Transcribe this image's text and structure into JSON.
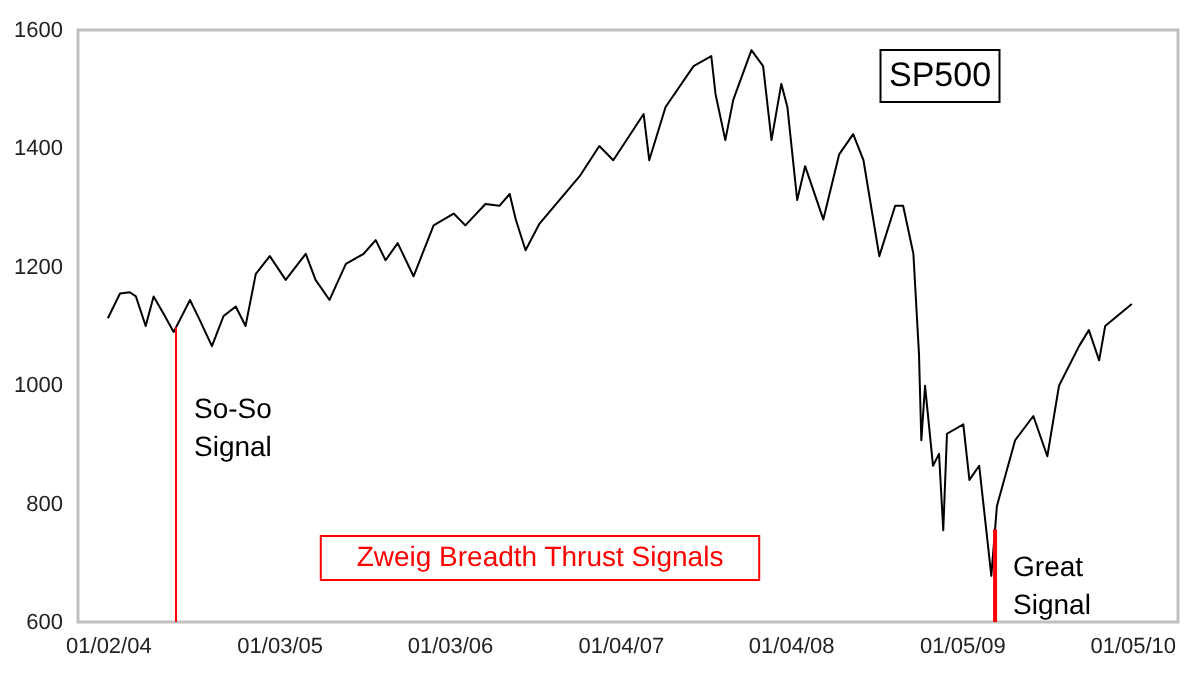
{
  "chart_data": {
    "type": "line",
    "title": "SP500",
    "annotations": [
      "Zweig Breadth Thrust Signals"
    ],
    "x": [
      "2004-01-02",
      "2004-01-28",
      "2004-02-18",
      "2004-03-02",
      "2004-03-23",
      "2004-04-09",
      "2004-05-01",
      "2004-05-22",
      "2004-06-26",
      "2004-07-17",
      "2004-08-12",
      "2004-09-06",
      "2004-10-02",
      "2004-10-23",
      "2004-11-14",
      "2004-12-14",
      "2005-01-17",
      "2005-03-01",
      "2005-03-22",
      "2005-04-21",
      "2005-05-26",
      "2005-07-03",
      "2005-07-29",
      "2005-08-19",
      "2005-09-14",
      "2005-10-18",
      "2005-11-30",
      "2006-01-12",
      "2006-02-06",
      "2006-03-21",
      "2006-04-20",
      "2006-05-12",
      "2006-05-25",
      "2006-06-15",
      "2006-07-15",
      "2006-08-27",
      "2006-10-09",
      "2006-11-20",
      "2006-12-20",
      "2007-02-23",
      "2007-03-07",
      "2007-04-11",
      "2007-06-10",
      "2007-07-18",
      "2007-07-27",
      "2007-08-17",
      "2007-09-03",
      "2007-10-12",
      "2007-11-06",
      "2007-11-24",
      "2007-12-15",
      "2007-12-28",
      "2008-01-18",
      "2008-02-04",
      "2008-03-14",
      "2008-04-17",
      "2008-05-17",
      "2008-06-08",
      "2008-07-12",
      "2008-08-15",
      "2008-09-01",
      "2008-09-23",
      "2008-10-05",
      "2008-10-10",
      "2008-10-18",
      "2008-11-04",
      "2008-11-17",
      "2008-11-26",
      "2008-12-04",
      "2009-01-08",
      "2009-01-21",
      "2009-02-11",
      "2009-03-09",
      "2009-03-21",
      "2009-04-29",
      "2009-06-07",
      "2009-07-07",
      "2009-08-01",
      "2009-09-13",
      "2009-10-04",
      "2009-10-26",
      "2009-11-08",
      "2010-01-04"
    ],
    "series": [
      {
        "color": "#000000",
        "values": [
          1113,
          1155,
          1157,
          1150,
          1100,
          1150,
          1120,
          1090,
          1144,
          1110,
          1066,
          1117,
          1133,
          1100,
          1188,
          1218,
          1178,
          1222,
          1178,
          1144,
          1205,
          1222,
          1245,
          1211,
          1240,
          1184,
          1270,
          1290,
          1270,
          1306,
          1303,
          1323,
          1280,
          1228,
          1273,
          1313,
          1353,
          1404,
          1380,
          1458,
          1380,
          1470,
          1539,
          1556,
          1492,
          1414,
          1482,
          1566,
          1539,
          1414,
          1509,
          1470,
          1313,
          1370,
          1280,
          1390,
          1424,
          1380,
          1218,
          1303,
          1303,
          1222,
          1053,
          907,
          999,
          864,
          884,
          755,
          918,
          934,
          840,
          864,
          678,
          796,
          907,
          948,
          880,
          999,
          1066,
          1093,
          1042,
          1100,
          1137
        ]
      }
    ],
    "xlim": [
      "2003-10-30",
      "2010-04-13"
    ],
    "xticks": [
      {
        "value": "2004-01-02",
        "label": "01/02/04"
      },
      {
        "value": "2005-01-03",
        "label": "01/03/05"
      },
      {
        "value": "2006-01-03",
        "label": "01/03/06"
      },
      {
        "value": "2007-01-04",
        "label": "01/04/07"
      },
      {
        "value": "2008-01-04",
        "label": "01/04/08"
      },
      {
        "value": "2009-01-05",
        "label": "01/05/09"
      },
      {
        "value": "2010-01-05",
        "label": "01/05/10"
      }
    ],
    "ylim": [
      600,
      1600
    ],
    "yticks": [
      600,
      800,
      1000,
      1200,
      1400,
      1600
    ],
    "grid": false,
    "ref_lines": [
      {
        "axis": "x",
        "value": "2004-05-27",
        "label": "So-So Signal",
        "color": "#ff0000"
      },
      {
        "axis": "x",
        "value": "2009-03-17",
        "label": "Great Signal",
        "color": "#ff0000"
      }
    ]
  }
}
